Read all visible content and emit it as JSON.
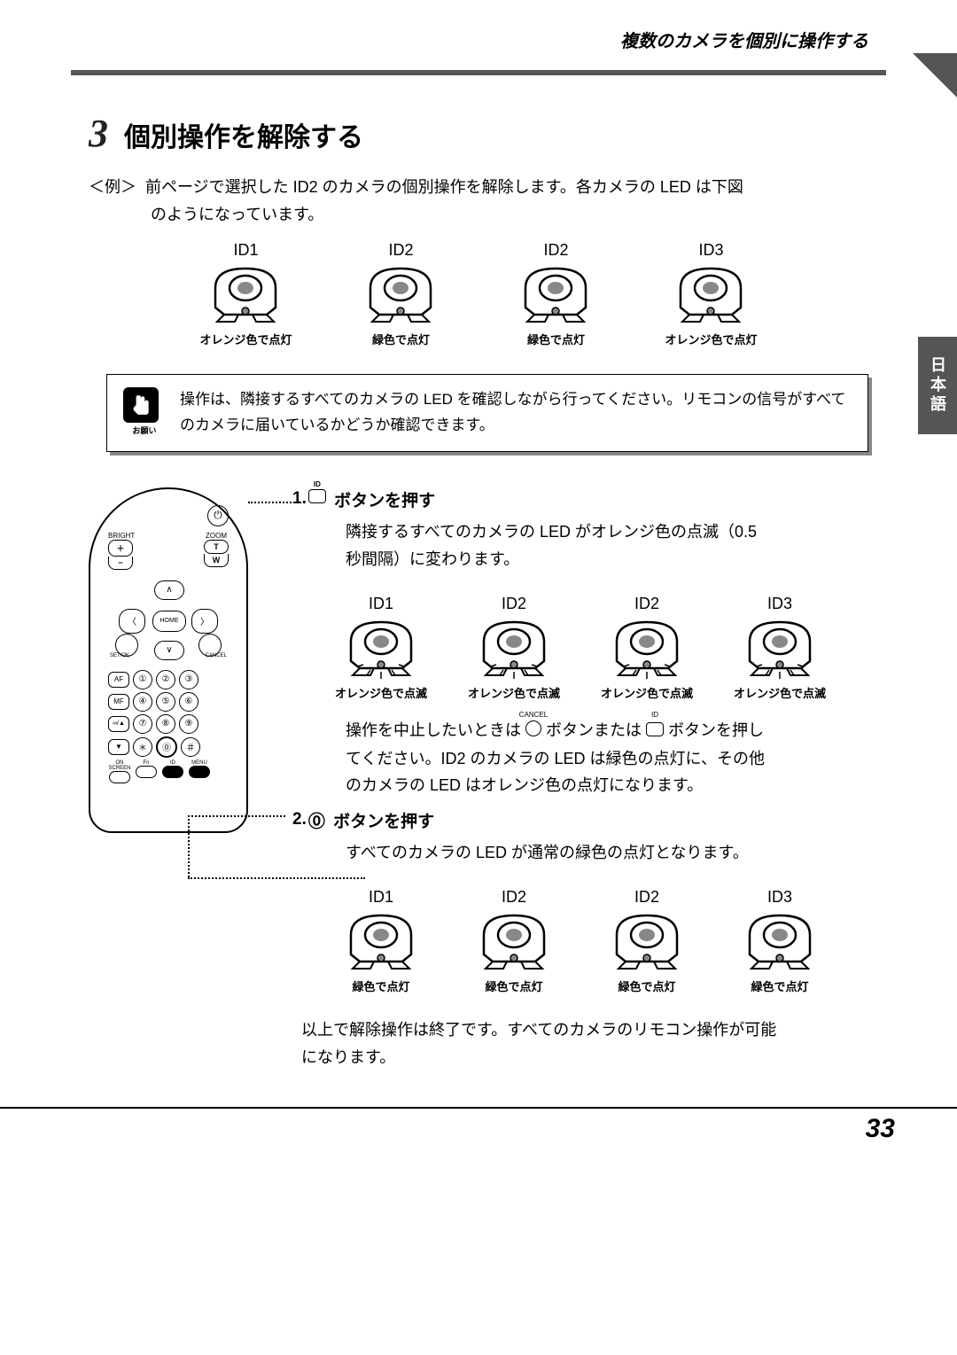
{
  "header": {
    "breadcrumb": "複数のカメラを個別に操作する"
  },
  "side_tab": "日本語",
  "section": {
    "number": "3",
    "title": "個別操作を解除する",
    "example_label": "＜例＞",
    "example_text_line1": "前ページで選択した ID2 のカメラの個別操作を解除します。各カメラの LED は下図",
    "example_text_line2": "のようになっています。"
  },
  "camera_rows": {
    "intro": {
      "items": [
        {
          "id": "ID1",
          "status": "オレンジ色で点灯",
          "led_fill": "#888888",
          "blink": false
        },
        {
          "id": "ID2",
          "status": "緑色で点灯",
          "led_fill": "#888888",
          "blink": false
        },
        {
          "id": "ID2",
          "status": "緑色で点灯",
          "led_fill": "#888888",
          "blink": false
        },
        {
          "id": "ID3",
          "status": "オレンジ色で点灯",
          "led_fill": "#888888",
          "blink": false
        }
      ]
    },
    "step1": {
      "items": [
        {
          "id": "ID1",
          "status": "オレンジ色で点滅",
          "led_fill": "#888888",
          "blink": true
        },
        {
          "id": "ID2",
          "status": "オレンジ色で点滅",
          "led_fill": "#888888",
          "blink": true
        },
        {
          "id": "ID2",
          "status": "オレンジ色で点滅",
          "led_fill": "#888888",
          "blink": true
        },
        {
          "id": "ID3",
          "status": "オレンジ色で点滅",
          "led_fill": "#888888",
          "blink": true
        }
      ]
    },
    "step2": {
      "items": [
        {
          "id": "ID1",
          "status": "緑色で点灯",
          "led_fill": "#888888",
          "blink": false
        },
        {
          "id": "ID2",
          "status": "緑色で点灯",
          "led_fill": "#888888",
          "blink": false
        },
        {
          "id": "ID2",
          "status": "緑色で点灯",
          "led_fill": "#888888",
          "blink": false
        },
        {
          "id": "ID3",
          "status": "緑色で点灯",
          "led_fill": "#888888",
          "blink": false
        }
      ]
    }
  },
  "note": {
    "icon_caption": "お願い",
    "text": "操作は、隣接するすべてのカメラの LED を確認しながら行ってください。リモコンの信号がすべてのカメラに届いているかどうか確認できます。"
  },
  "remote": {
    "labels": {
      "bright": "BRIGHT",
      "zoom": "ZOOM",
      "plus": "＋",
      "minus": "−",
      "t": "T",
      "w": "W",
      "home": "HOME",
      "setok": "SET/OK",
      "cancel": "CANCEL",
      "af": "AF",
      "mf": "MF",
      "rec_up": "▲",
      "rec_dn": "▼",
      "onscreen": "ON SCREEN",
      "fn": "Fn",
      "id": "ID",
      "menu": "MENU",
      "nums": [
        "①",
        "②",
        "③",
        "④",
        "⑤",
        "⑥",
        "⑦",
        "⑧",
        "⑨",
        "＊",
        "⓪",
        "＃"
      ],
      "rec_sym_a": "∞/▲",
      "rec_sym_b": "●"
    }
  },
  "substeps": {
    "s1": {
      "num": "1.",
      "icon_label": "ID",
      "title_suffix": "ボタンを押す",
      "body1": "隣接するすべてのカメラの LED がオレンジ色の点滅（0.5",
      "body2": "秒間隔）に変わります。",
      "cancel_note1": "操作を中止したいときは",
      "cancel_icon1_label": "CANCEL",
      "cancel_note2": "ボタンまたは",
      "cancel_icon2_label": "ID",
      "cancel_note3": "ボタンを押し",
      "cancel_note4": "てください。ID2 のカメラの LED は緑色の点灯に、その他",
      "cancel_note5": "のカメラの LED はオレンジ色の点灯になります。"
    },
    "s2": {
      "num": "2.",
      "zero": "⓪",
      "title_suffix": "ボタンを押す",
      "body": "すべてのカメラの LED が通常の緑色の点灯となります。",
      "closing1": "以上で解除操作は終了です。すべてのカメラのリモコン操作が可能",
      "closing2": "になります。"
    }
  },
  "footer": {
    "page_number": "33"
  },
  "colors": {
    "accent": "#555555",
    "text": "#000000"
  }
}
